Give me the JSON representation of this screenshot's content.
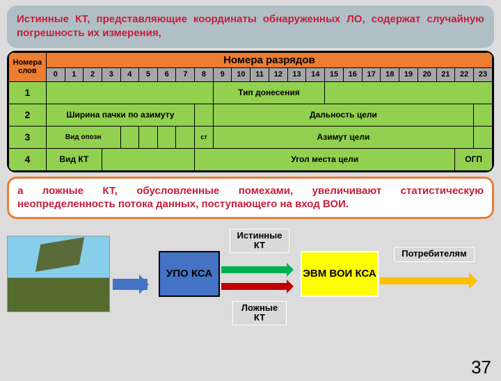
{
  "callouts": {
    "top": "Истинные КТ, представляющие координаты обнаруженных ЛО, содержат случайную погрешность их измерения,",
    "mid": "а ложные КТ, обусловленные помехами, увеличивают статистическую неопределенность потока данных, поступающего на вход ВОИ."
  },
  "table": {
    "row_label_header": "Номера слов",
    "col_header": "Номера разрядов",
    "bit_numbers": [
      "0",
      "1",
      "2",
      "3",
      "4",
      "5",
      "6",
      "7",
      "8",
      "9",
      "10",
      "11",
      "12",
      "13",
      "14",
      "15",
      "16",
      "17",
      "18",
      "19",
      "20",
      "21",
      "22",
      "23"
    ],
    "rows": [
      {
        "num": "1",
        "fields": [
          {
            "text": "",
            "span": 9
          },
          {
            "text": "Тип  донесения",
            "span": 6
          },
          {
            "text": "",
            "span": 9
          }
        ]
      },
      {
        "num": "2",
        "fields": [
          {
            "text": "Ширина пачки по азимуту",
            "span": 8
          },
          {
            "text": "",
            "span": 1
          },
          {
            "text": "Дальность цели",
            "span": 14
          },
          {
            "text": "",
            "span": 1
          }
        ]
      },
      {
        "num": "3",
        "fields": [
          {
            "text": "Вид опозн",
            "span": 4,
            "fs": 10
          },
          {
            "text": "",
            "span": 1
          },
          {
            "text": "",
            "span": 1
          },
          {
            "text": "",
            "span": 1
          },
          {
            "text": "",
            "span": 1
          },
          {
            "text": "ст",
            "span": 1,
            "fs": 9
          },
          {
            "text": "Азимут    цели",
            "span": 14
          },
          {
            "text": "",
            "span": 1
          }
        ]
      },
      {
        "num": "4",
        "fields": [
          {
            "text": "Вид  КТ",
            "span": 3
          },
          {
            "text": "",
            "span": 5
          },
          {
            "text": "Угол места цели",
            "span": 14
          },
          {
            "text": "ОГП",
            "span": 2
          }
        ]
      }
    ]
  },
  "diagram": {
    "upo": "УПО КСА",
    "evm": "ЭВМ ВОИ КСА",
    "true_kt": "Истинные КТ",
    "false_kt": "Ложные КТ",
    "consumers": "Потребителям"
  },
  "page_number": "37",
  "colors": {
    "header_orange": "#ed7d31",
    "cell_green": "#92d050",
    "bit_gray": "#a6a6a6",
    "callout_bg": "#b0bec5",
    "text_red": "#c41e3a",
    "upo_blue": "#4472c4",
    "evm_yellow": "#ffff00",
    "arrow_green": "#00b050",
    "arrow_red": "#c00000",
    "arrow_yellow": "#ffc000",
    "label_gray": "#d9d9d9"
  }
}
